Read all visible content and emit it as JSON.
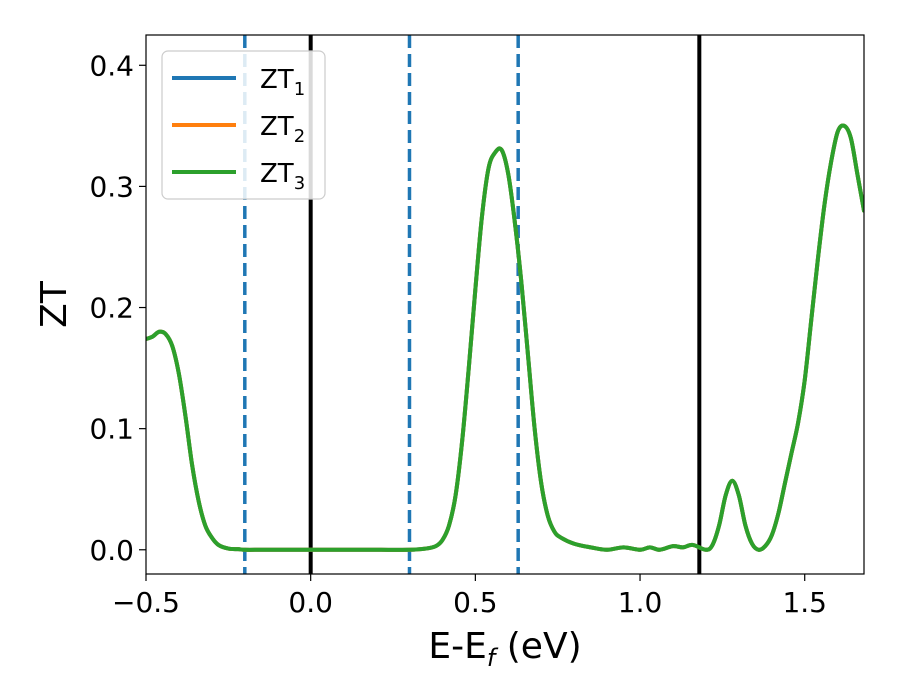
{
  "chart_data": {
    "type": "line",
    "xlabel": "E-E",
    "xlabel_sub": "f",
    "xlabel_unit": " (eV)",
    "ylabel": "ZT",
    "xlim": [
      -0.5,
      1.68
    ],
    "ylim": [
      -0.02,
      0.425
    ],
    "xticks": [
      -0.5,
      0.0,
      0.5,
      1.0,
      1.5
    ],
    "xtick_labels": [
      "−0.5",
      "0.0",
      "0.5",
      "1.0",
      "1.5"
    ],
    "yticks": [
      0.0,
      0.1,
      0.2,
      0.3,
      0.4
    ],
    "ytick_labels": [
      "0.0",
      "0.1",
      "0.2",
      "0.3",
      "0.4"
    ],
    "grid": false,
    "legend_position": "top-left",
    "vlines": [
      {
        "x": -0.2,
        "style": "dashed",
        "color": "#1f77b4"
      },
      {
        "x": 0.0,
        "style": "solid",
        "color": "#000000"
      },
      {
        "x": 0.3,
        "style": "dashed",
        "color": "#1f77b4"
      },
      {
        "x": 0.63,
        "style": "dashed",
        "color": "#1f77b4"
      },
      {
        "x": 1.18,
        "style": "solid",
        "color": "#000000"
      }
    ],
    "series": [
      {
        "name": "ZT",
        "sub": "1",
        "color": "#1f77b4"
      },
      {
        "name": "ZT",
        "sub": "2",
        "color": "#ff7f0e"
      },
      {
        "name": "ZT",
        "sub": "3",
        "color": "#2ca02c"
      }
    ],
    "x": [
      -0.5,
      -0.48,
      -0.46,
      -0.44,
      -0.42,
      -0.4,
      -0.38,
      -0.36,
      -0.34,
      -0.32,
      -0.3,
      -0.28,
      -0.25,
      -0.22,
      -0.2,
      -0.15,
      -0.1,
      0.0,
      0.1,
      0.2,
      0.3,
      0.35,
      0.38,
      0.4,
      0.42,
      0.44,
      0.46,
      0.48,
      0.5,
      0.52,
      0.54,
      0.56,
      0.58,
      0.6,
      0.62,
      0.64,
      0.66,
      0.68,
      0.7,
      0.72,
      0.74,
      0.76,
      0.8,
      0.85,
      0.9,
      0.95,
      1.0,
      1.03,
      1.06,
      1.1,
      1.13,
      1.16,
      1.2,
      1.22,
      1.24,
      1.26,
      1.28,
      1.3,
      1.32,
      1.34,
      1.36,
      1.38,
      1.4,
      1.42,
      1.44,
      1.46,
      1.48,
      1.5,
      1.52,
      1.54,
      1.56,
      1.58,
      1.6,
      1.62,
      1.64,
      1.66,
      1.68
    ],
    "y": [
      0.174,
      0.176,
      0.18,
      0.178,
      0.168,
      0.145,
      0.11,
      0.07,
      0.04,
      0.02,
      0.01,
      0.004,
      0.001,
      0.0005,
      0.0,
      0.0,
      0.0,
      0.0,
      0.0,
      0.0,
      0.0,
      0.001,
      0.003,
      0.008,
      0.02,
      0.045,
      0.09,
      0.15,
      0.215,
      0.275,
      0.315,
      0.328,
      0.33,
      0.31,
      0.27,
      0.22,
      0.16,
      0.1,
      0.055,
      0.028,
      0.015,
      0.01,
      0.005,
      0.002,
      0.0,
      0.002,
      0.0,
      0.002,
      0.0,
      0.003,
      0.002,
      0.004,
      0.0,
      0.004,
      0.02,
      0.045,
      0.057,
      0.045,
      0.02,
      0.005,
      0.0,
      0.003,
      0.012,
      0.03,
      0.055,
      0.08,
      0.105,
      0.14,
      0.19,
      0.24,
      0.285,
      0.32,
      0.345,
      0.35,
      0.34,
      0.31,
      0.28
    ]
  }
}
